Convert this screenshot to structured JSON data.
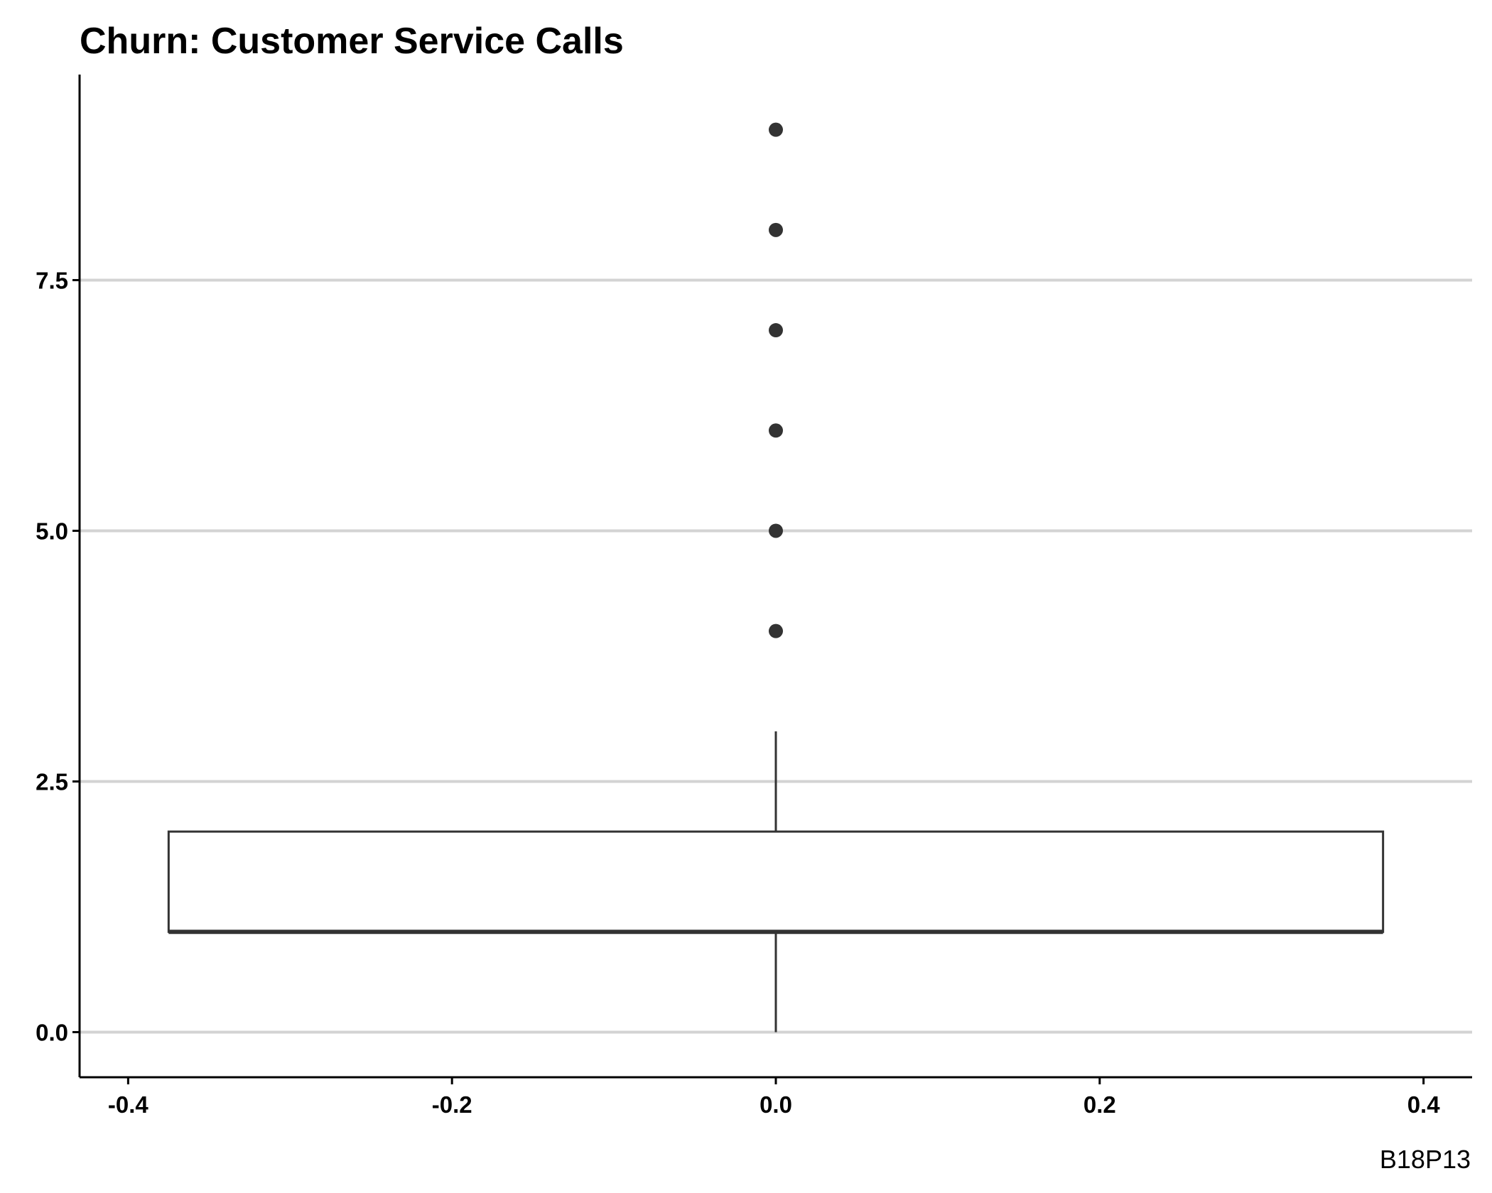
{
  "chart_data": {
    "type": "boxplot",
    "title": "Churn: Customer Service Calls",
    "caption": "B18P13",
    "xlabel": "",
    "ylabel": "",
    "xlim": [
      -0.43,
      0.43
    ],
    "ylim": [
      -0.45,
      9.55
    ],
    "x_ticks": [
      -0.4,
      -0.2,
      0.0,
      0.2,
      0.4
    ],
    "x_tick_labels": [
      "-0.4",
      "-0.2",
      "0.0",
      "0.2",
      "0.4"
    ],
    "y_ticks": [
      0,
      2.5,
      5,
      7.5
    ],
    "y_tick_labels": [
      "0.0",
      "2.5",
      "5.0",
      "7.5"
    ],
    "grid": "horizontal major",
    "box": {
      "x_center": 0.0,
      "x_left": -0.375,
      "x_right": 0.375,
      "whisker_low": 0,
      "q1": 1,
      "median": 1,
      "q3": 2,
      "whisker_high": 3
    },
    "outliers": [
      4,
      5,
      6,
      7,
      8,
      9
    ],
    "colors": {
      "grid": "#d3d3d3",
      "axis": "#000000",
      "box_line": "#333333",
      "outlier": "#333333",
      "background": "#ffffff"
    }
  }
}
